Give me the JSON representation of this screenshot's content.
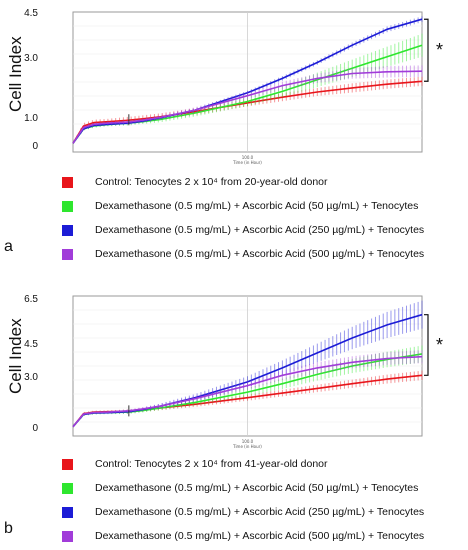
{
  "chart_data": [
    {
      "panel": "a",
      "type": "line",
      "ylabel": "Cell Index",
      "yticks": [
        "4.5",
        "3.0",
        "1.0",
        "0"
      ],
      "ytick_values": [
        4.5,
        3.0,
        1.0,
        0
      ],
      "ylim": [
        -0.3,
        4.55
      ],
      "xlim": [
        0,
        100
      ],
      "x_axis_title": "Time (in Hour)",
      "x_axis_midlabel": "100.0",
      "annotation": "*",
      "x": [
        0,
        3,
        6,
        10,
        16,
        20,
        25,
        35,
        50,
        60,
        70,
        80,
        90,
        100
      ],
      "series": [
        {
          "name": "Control: Tenocytes 2 x 10⁴ from 20-year-old donor",
          "color": "#e8151b",
          "values": [
            0,
            0.6,
            0.72,
            0.75,
            0.8,
            0.85,
            0.92,
            1.1,
            1.4,
            1.6,
            1.78,
            1.92,
            2.05,
            2.15
          ],
          "err": [
            0.02,
            0.1,
            0.1,
            0.1,
            0.12,
            0.12,
            0.12,
            0.12,
            0.12,
            0.14,
            0.14,
            0.16,
            0.16,
            0.16
          ]
        },
        {
          "name": "Dexamethasone (0.5 mg/mL) + Ascorbic Acid (50 µg/mL) + Tenocytes",
          "color": "#2ee62e",
          "values": [
            0,
            0.5,
            0.6,
            0.65,
            0.7,
            0.75,
            0.83,
            1.05,
            1.45,
            1.8,
            2.2,
            2.6,
            3.0,
            3.4
          ],
          "err": [
            0.02,
            0.06,
            0.06,
            0.06,
            0.08,
            0.08,
            0.1,
            0.12,
            0.16,
            0.2,
            0.25,
            0.3,
            0.35,
            0.4
          ]
        },
        {
          "name": "Dexamethasone (0.5 mg/mL) + Ascorbic Acid (250 µg/mL) + Tenocytes",
          "color": "#1c1cd6",
          "values": [
            0,
            0.5,
            0.62,
            0.66,
            0.7,
            0.77,
            0.88,
            1.15,
            1.75,
            2.25,
            2.8,
            3.4,
            3.95,
            4.3
          ],
          "err": [
            0.02,
            0.05,
            0.05,
            0.05,
            0.05,
            0.06,
            0.06,
            0.06,
            0.07,
            0.08,
            0.08,
            0.09,
            0.1,
            0.1
          ]
        },
        {
          "name": "Dexamethasone (0.5 mg/mL) + Ascorbic Acid (500 µg/mL) + Tenocytes",
          "color": "#a13cd9",
          "values": [
            0,
            0.55,
            0.66,
            0.7,
            0.74,
            0.8,
            0.9,
            1.15,
            1.65,
            2.0,
            2.25,
            2.42,
            2.48,
            2.5
          ],
          "err": [
            0.02,
            0.06,
            0.06,
            0.06,
            0.06,
            0.07,
            0.08,
            0.1,
            0.12,
            0.14,
            0.16,
            0.18,
            0.2,
            0.2
          ]
        }
      ]
    },
    {
      "panel": "b",
      "type": "line",
      "ylabel": "Cell Index",
      "yticks": [
        "6.5",
        "4.5",
        "3.0",
        "0"
      ],
      "ytick_values": [
        6.5,
        4.5,
        3.0,
        0
      ],
      "ylim": [
        -0.5,
        7.0
      ],
      "xlim": [
        0,
        100
      ],
      "x_axis_title": "Time (in Hour)",
      "x_axis_midlabel": "100.0",
      "annotation": "*",
      "x": [
        0,
        3,
        6,
        10,
        16,
        20,
        25,
        35,
        50,
        60,
        70,
        80,
        90,
        100
      ],
      "series": [
        {
          "name": "Control: Tenocytes 2 x 10⁴ from 41-year-old donor",
          "color": "#e8151b",
          "values": [
            0,
            0.7,
            0.78,
            0.8,
            0.82,
            0.9,
            1.0,
            1.2,
            1.55,
            1.8,
            2.05,
            2.3,
            2.55,
            2.75
          ],
          "err": [
            0.02,
            0.08,
            0.08,
            0.08,
            0.1,
            0.1,
            0.12,
            0.14,
            0.16,
            0.18,
            0.2,
            0.22,
            0.24,
            0.25
          ]
        },
        {
          "name": "Dexamethasone (0.5 mg/mL) + Ascorbic Acid (50 µg/mL) + Tenocytes",
          "color": "#2ee62e",
          "values": [
            0,
            0.65,
            0.73,
            0.75,
            0.78,
            0.86,
            1.0,
            1.3,
            1.85,
            2.3,
            2.8,
            3.25,
            3.6,
            3.9
          ],
          "err": [
            0.02,
            0.08,
            0.08,
            0.08,
            0.1,
            0.1,
            0.12,
            0.16,
            0.22,
            0.28,
            0.33,
            0.38,
            0.42,
            0.45
          ]
        },
        {
          "name": "Dexamethasone (0.5 mg/mL) + Ascorbic Acid (250 µg/mL) + Tenocytes",
          "color": "#1c1cd6",
          "values": [
            0,
            0.65,
            0.73,
            0.75,
            0.8,
            0.92,
            1.1,
            1.55,
            2.4,
            3.15,
            3.95,
            4.75,
            5.45,
            6.0
          ],
          "err": [
            0.02,
            0.06,
            0.06,
            0.06,
            0.08,
            0.1,
            0.14,
            0.2,
            0.3,
            0.4,
            0.5,
            0.6,
            0.7,
            0.75
          ]
        },
        {
          "name": "Dexamethasone (0.5 mg/mL) + Ascorbic Acid (500 µg/mL) + Tenocytes",
          "color": "#a13cd9",
          "values": [
            0,
            0.68,
            0.76,
            0.78,
            0.85,
            0.95,
            1.1,
            1.5,
            2.2,
            2.75,
            3.15,
            3.45,
            3.65,
            3.75
          ],
          "err": [
            0.02,
            0.06,
            0.06,
            0.06,
            0.08,
            0.1,
            0.12,
            0.16,
            0.22,
            0.26,
            0.3,
            0.32,
            0.34,
            0.35
          ]
        }
      ]
    }
  ]
}
